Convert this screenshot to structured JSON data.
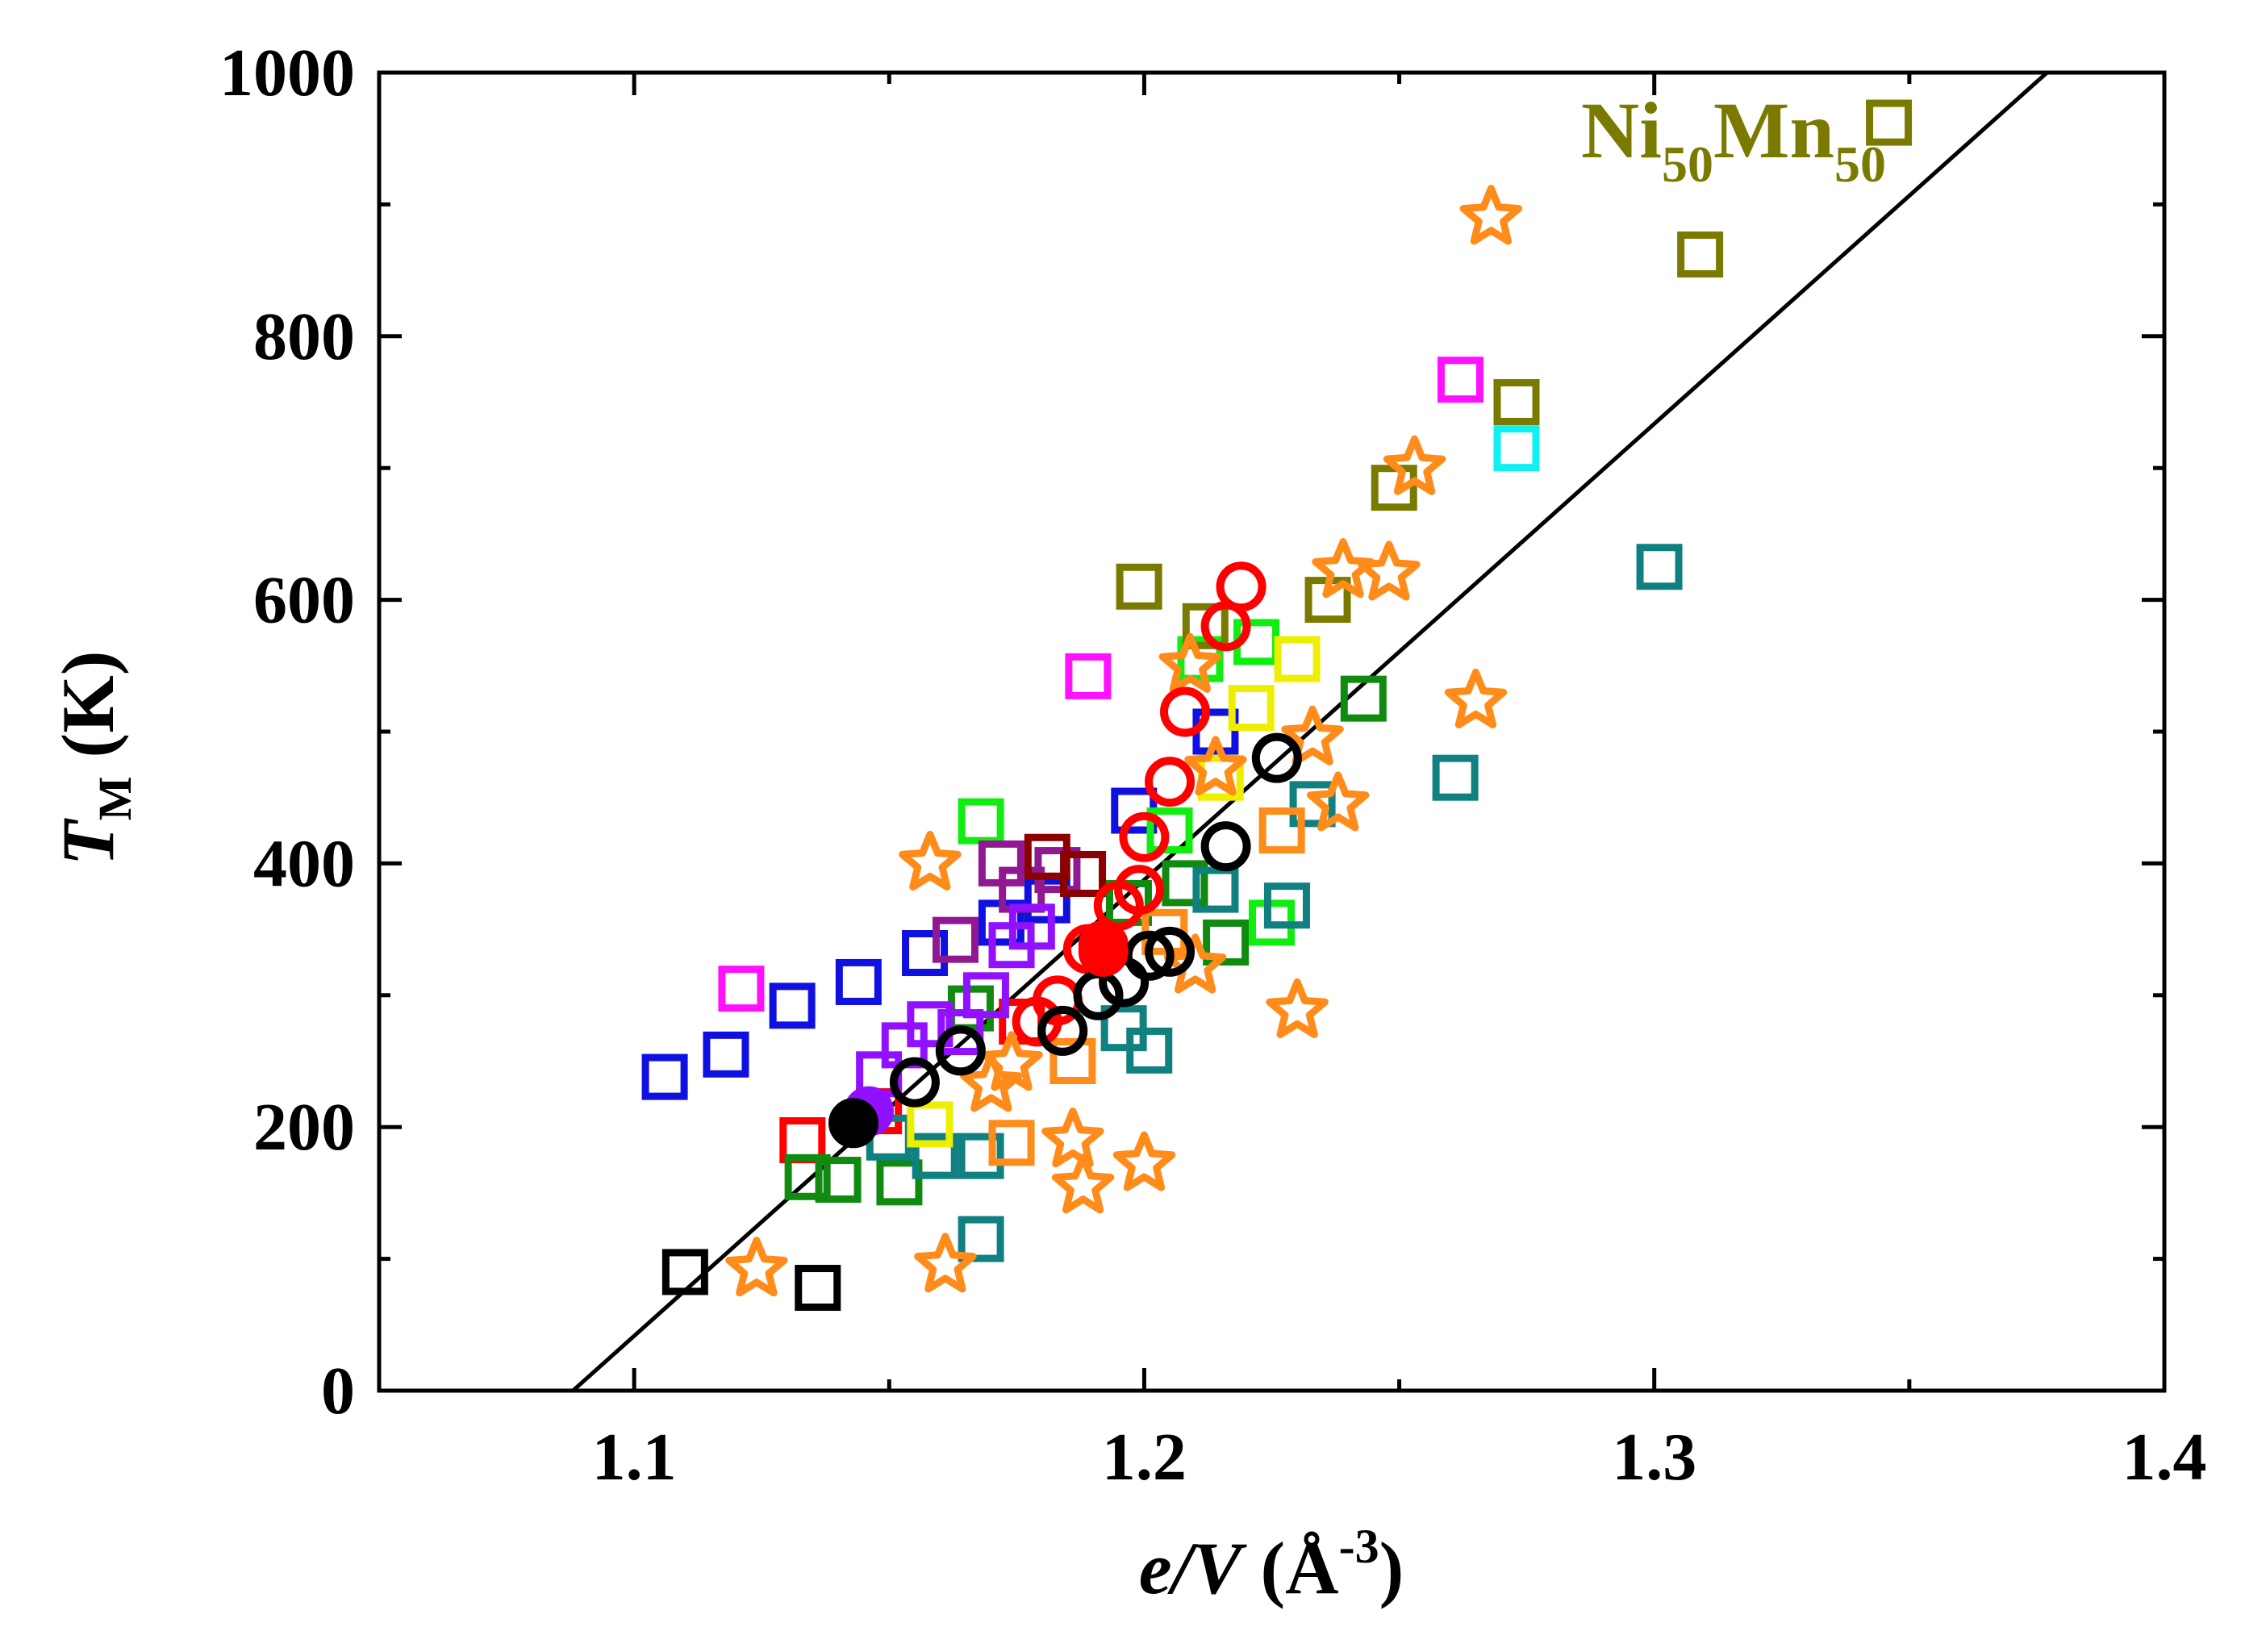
{
  "chart_data": {
    "type": "scatter",
    "xlabel": {
      "italic": "e/V",
      "rest": " (Å",
      "sup": "-3",
      "close": ")"
    },
    "ylabel": {
      "italic": "T",
      "sub": "M",
      "rest": " (K)"
    },
    "xlim": [
      1.05,
      1.4
    ],
    "ylim": [
      0,
      1000
    ],
    "xticks": [
      1.1,
      1.2,
      1.3,
      1.4
    ],
    "yticks": [
      0,
      200,
      400,
      600,
      800,
      1000
    ],
    "xtick_labels": [
      "1.1",
      "1.2",
      "1.3",
      "1.4"
    ],
    "ytick_labels": [
      "0",
      "200",
      "400",
      "600",
      "800",
      "1000"
    ],
    "annotation": {
      "base1": "Ni",
      "sub1": "50",
      "base2": "Mn",
      "sub2": "50"
    },
    "fit_line": {
      "x": [
        1.088,
        1.377
      ],
      "y": [
        0,
        1000
      ]
    },
    "colors": {
      "blue": "#1010e0",
      "magenta": "#ff10ff",
      "red": "#ff0000",
      "black": "#000000",
      "green": "#108a10",
      "lime": "#10ee10",
      "teal": "#108080",
      "olive": "#7a7a00",
      "cyan": "#10f0f0",
      "yellow": "#eeee00",
      "orange": "#ff8c1a",
      "purple": "#901890",
      "violet": "#9010ff",
      "darkred": "#8b0000"
    },
    "series": [
      {
        "name": "blue",
        "marker": "square",
        "color": "blue",
        "points": [
          [
            1.106,
            238
          ],
          [
            1.118,
            255
          ],
          [
            1.131,
            292
          ],
          [
            1.144,
            310
          ],
          [
            1.157,
            332
          ],
          [
            1.172,
            355
          ],
          [
            1.181,
            372
          ],
          [
            1.198,
            440
          ],
          [
            1.214,
            500
          ]
        ]
      },
      {
        "name": "magenta",
        "marker": "square",
        "color": "magenta",
        "points": [
          [
            1.121,
            305
          ],
          [
            1.189,
            542
          ],
          [
            1.262,
            767
          ]
        ]
      },
      {
        "name": "red-squares",
        "marker": "square",
        "color": "red",
        "points": [
          [
            1.133,
            190
          ],
          [
            1.148,
            212
          ],
          [
            1.176,
            280
          ]
        ]
      },
      {
        "name": "black-squares",
        "marker": "square",
        "color": "black",
        "points": [
          [
            1.11,
            90
          ],
          [
            1.136,
            78
          ]
        ]
      },
      {
        "name": "green",
        "marker": "square",
        "color": "green",
        "points": [
          [
            1.134,
            162
          ],
          [
            1.14,
            160
          ],
          [
            1.152,
            158
          ],
          [
            1.166,
            290
          ],
          [
            1.197,
            370
          ],
          [
            1.208,
            385
          ],
          [
            1.216,
            340
          ],
          [
            1.243,
            525
          ]
        ]
      },
      {
        "name": "lime",
        "marker": "square",
        "color": "lime",
        "points": [
          [
            1.168,
            432
          ],
          [
            1.222,
            568
          ],
          [
            1.225,
            355
          ],
          [
            1.205,
            425
          ],
          [
            1.211,
            555
          ]
        ]
      },
      {
        "name": "teal",
        "marker": "square",
        "color": "teal",
        "points": [
          [
            1.15,
            192
          ],
          [
            1.159,
            178
          ],
          [
            1.168,
            178
          ],
          [
            1.168,
            115
          ],
          [
            1.196,
            275
          ],
          [
            1.201,
            258
          ],
          [
            1.214,
            380
          ],
          [
            1.228,
            368
          ],
          [
            1.233,
            445
          ],
          [
            1.261,
            465
          ],
          [
            1.301,
            625
          ]
        ]
      },
      {
        "name": "olive",
        "marker": "square",
        "color": "olive",
        "points": [
          [
            1.199,
            610
          ],
          [
            1.212,
            580
          ],
          [
            1.236,
            600
          ],
          [
            1.249,
            685
          ],
          [
            1.273,
            750
          ],
          [
            1.309,
            862
          ],
          [
            1.346,
            962
          ]
        ]
      },
      {
        "name": "cyan",
        "marker": "square",
        "color": "cyan",
        "points": [
          [
            1.273,
            715
          ]
        ]
      },
      {
        "name": "yellow",
        "marker": "square",
        "color": "yellow",
        "points": [
          [
            1.158,
            202
          ],
          [
            1.215,
            465
          ],
          [
            1.221,
            518
          ],
          [
            1.23,
            555
          ]
        ]
      },
      {
        "name": "orange-squares",
        "marker": "square",
        "color": "orange",
        "points": [
          [
            1.174,
            188
          ],
          [
            1.186,
            250
          ],
          [
            1.204,
            348
          ],
          [
            1.227,
            425
          ]
        ]
      },
      {
        "name": "purple",
        "marker": "square",
        "color": "purple",
        "points": [
          [
            1.163,
            342
          ],
          [
            1.172,
            400
          ],
          [
            1.176,
            380
          ],
          [
            1.183,
            395
          ]
        ]
      },
      {
        "name": "violet",
        "marker": "square",
        "color": "violet",
        "points": [
          [
            1.148,
            240
          ],
          [
            1.153,
            262
          ],
          [
            1.158,
            278
          ],
          [
            1.164,
            272
          ],
          [
            1.169,
            300
          ],
          [
            1.174,
            338
          ],
          [
            1.178,
            352
          ]
        ]
      },
      {
        "name": "darkred",
        "marker": "square",
        "color": "darkred",
        "points": [
          [
            1.181,
            405
          ],
          [
            1.188,
            392
          ]
        ]
      },
      {
        "name": "orange-stars",
        "marker": "star",
        "color": "orange",
        "points": [
          [
            1.124,
            92
          ],
          [
            1.158,
            400
          ],
          [
            1.161,
            95
          ],
          [
            1.17,
            232
          ],
          [
            1.174,
            248
          ],
          [
            1.186,
            190
          ],
          [
            1.188,
            155
          ],
          [
            1.2,
            172
          ],
          [
            1.21,
            322
          ],
          [
            1.209,
            550
          ],
          [
            1.214,
            472
          ],
          [
            1.23,
            288
          ],
          [
            1.233,
            495
          ],
          [
            1.238,
            445
          ],
          [
            1.239,
            622
          ],
          [
            1.248,
            620
          ],
          [
            1.253,
            700
          ],
          [
            1.265,
            523
          ],
          [
            1.268,
            890
          ]
        ]
      },
      {
        "name": "red-circles",
        "marker": "circle-open",
        "color": "red",
        "points": [
          [
            1.179,
            280
          ],
          [
            1.183,
            296
          ],
          [
            1.189,
            335
          ],
          [
            1.192,
            338
          ],
          [
            1.195,
            368
          ],
          [
            1.199,
            380
          ],
          [
            1.2,
            420
          ],
          [
            1.205,
            462
          ],
          [
            1.208,
            515
          ],
          [
            1.216,
            580
          ],
          [
            1.219,
            610
          ]
        ]
      },
      {
        "name": "black-circles",
        "marker": "circle-open",
        "color": "black",
        "points": [
          [
            1.155,
            234
          ],
          [
            1.164,
            258
          ],
          [
            1.184,
            273
          ],
          [
            1.191,
            300
          ],
          [
            1.196,
            310
          ],
          [
            1.201,
            330
          ],
          [
            1.205,
            333
          ],
          [
            1.216,
            413
          ],
          [
            1.226,
            480
          ]
        ]
      },
      {
        "name": "red-filled",
        "marker": "circle-filled",
        "color": "red",
        "points": [
          [
            1.192,
            333
          ]
        ]
      },
      {
        "name": "violet-filled",
        "marker": "circle-filled",
        "color": "violet",
        "points": [
          [
            1.146,
            212
          ]
        ]
      },
      {
        "name": "black-filled",
        "marker": "circle-filled",
        "color": "black",
        "points": [
          [
            1.143,
            203
          ]
        ]
      }
    ]
  }
}
